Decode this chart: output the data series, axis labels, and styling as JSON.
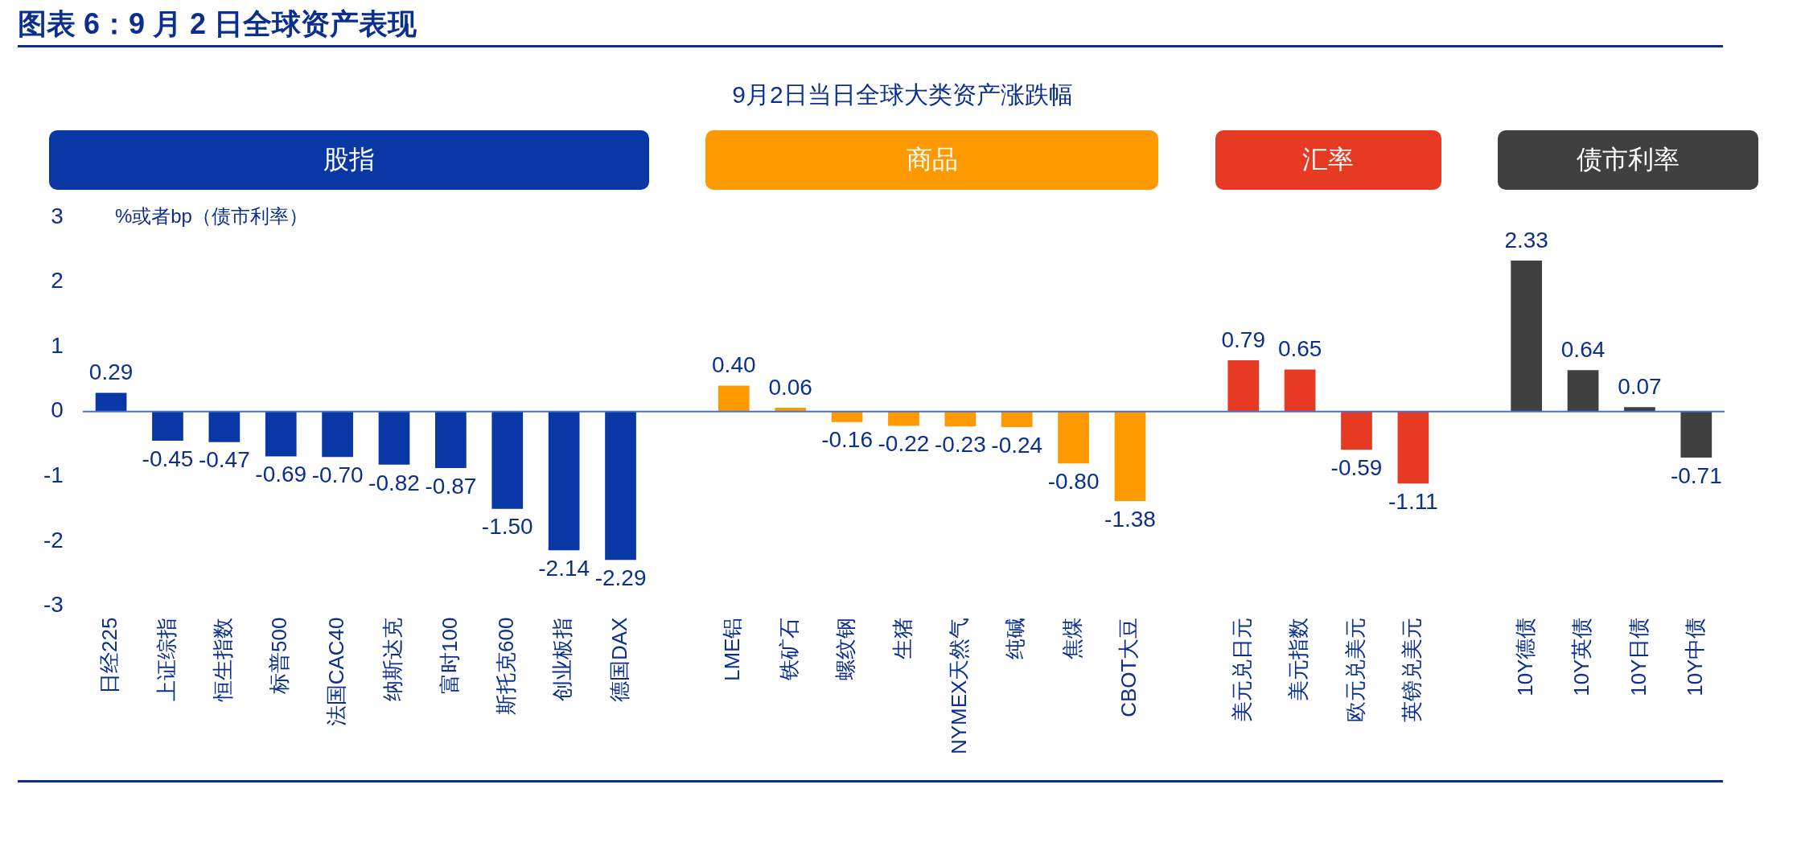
{
  "chart_data": {
    "type": "bar",
    "title": "图表 6：9 月 2 日全球资产表现",
    "subtitle": "9月2日当日全球大类资产涨跌幅",
    "ylabel": "%或者bp（债市利率）",
    "categories": [
      "日经225",
      "上证综指",
      "恒生指数",
      "标普500",
      "法国CAC40",
      "纳斯达克",
      "富时100",
      "斯托克600",
      "创业板指",
      "德国DAX",
      null,
      "LME铝",
      "铁矿石",
      "螺纹钢",
      "生猪",
      "NYMEX天然气",
      "纯碱",
      "焦煤",
      "CBOT大豆",
      null,
      "美元兑日元",
      "美元指数",
      "欧元兑美元",
      "英镑兑美元",
      null,
      "10Y德债",
      "10Y英债",
      "10Y日债",
      "10Y中债"
    ],
    "series": [
      {
        "name": "股指",
        "color": "#0a37a6",
        "values": [
          0.29,
          -0.45,
          -0.47,
          -0.69,
          -0.7,
          -0.82,
          -0.87,
          -1.5,
          -2.14,
          -2.29,
          null,
          null,
          null,
          null,
          null,
          null,
          null,
          null,
          null,
          null,
          null,
          null,
          null,
          null,
          null,
          null,
          null,
          null,
          null
        ],
        "value_labels": [
          "0.29",
          "-0.45",
          "-0.47",
          "-0.69",
          "-0.70",
          "-0.82",
          "-0.87",
          "-1.50",
          "-2.14",
          "-2.29",
          null,
          null,
          null,
          null,
          null,
          null,
          null,
          null,
          null,
          null,
          null,
          null,
          null,
          null,
          null,
          null,
          null,
          null,
          null
        ]
      },
      {
        "name": "商品",
        "color": "#ff9900",
        "values": [
          null,
          null,
          null,
          null,
          null,
          null,
          null,
          null,
          null,
          null,
          null,
          0.4,
          0.06,
          -0.16,
          -0.22,
          -0.23,
          -0.24,
          -0.8,
          -1.38,
          null,
          null,
          null,
          null,
          null,
          null,
          null,
          null,
          null,
          null
        ],
        "value_labels": [
          null,
          null,
          null,
          null,
          null,
          null,
          null,
          null,
          null,
          null,
          null,
          "0.40",
          "0.06",
          "-0.16",
          "-0.22",
          "-0.23",
          "-0.24",
          "-0.80",
          "-1.38",
          null,
          null,
          null,
          null,
          null,
          null,
          null,
          null,
          null,
          null
        ]
      },
      {
        "name": "汇率",
        "color": "#e63a22",
        "values": [
          null,
          null,
          null,
          null,
          null,
          null,
          null,
          null,
          null,
          null,
          null,
          null,
          null,
          null,
          null,
          null,
          null,
          null,
          null,
          null,
          0.79,
          0.65,
          -0.59,
          -1.11,
          null,
          null,
          null,
          null,
          null
        ],
        "value_labels": [
          null,
          null,
          null,
          null,
          null,
          null,
          null,
          null,
          null,
          null,
          null,
          null,
          null,
          null,
          null,
          null,
          null,
          null,
          null,
          null,
          "0.79",
          "0.65",
          "-0.59",
          "-1.11",
          null,
          null,
          null,
          null,
          null
        ]
      },
      {
        "name": "债市利率",
        "color": "#404040",
        "values": [
          null,
          null,
          null,
          null,
          null,
          null,
          null,
          null,
          null,
          null,
          null,
          null,
          null,
          null,
          null,
          null,
          null,
          null,
          null,
          null,
          null,
          null,
          null,
          null,
          null,
          2.33,
          0.64,
          0.07,
          -0.71
        ],
        "value_labels": [
          null,
          null,
          null,
          null,
          null,
          null,
          null,
          null,
          null,
          null,
          null,
          null,
          null,
          null,
          null,
          null,
          null,
          null,
          null,
          null,
          null,
          null,
          null,
          null,
          null,
          "2.33",
          "0.64",
          "0.07",
          "-0.71"
        ]
      }
    ],
    "ylim": [
      -3,
      3
    ],
    "yticks": [
      -3,
      -2,
      -1,
      0,
      1,
      2,
      3
    ],
    "grid": false,
    "legend": "top",
    "ref_lines": [
      {
        "axis": "y",
        "value": 0,
        "color": "#4a6fd0"
      }
    ]
  }
}
